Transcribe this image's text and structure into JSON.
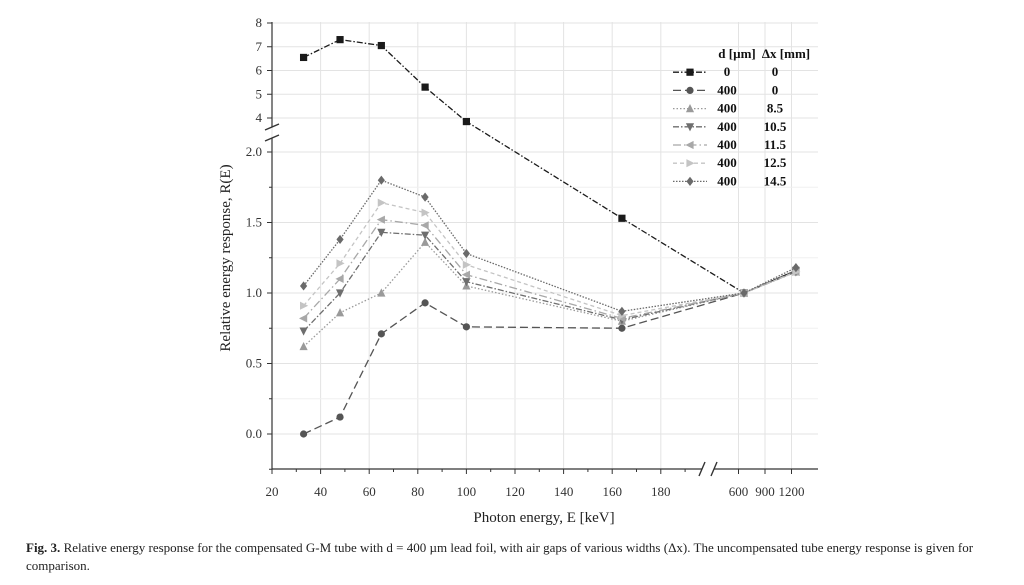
{
  "chart_data": {
    "type": "line",
    "xlabel": "Photon energy, E [keV]",
    "ylabel": "Relative energy response, R(E)",
    "x_scale": "broken",
    "x_ticks": [
      "20",
      "40",
      "60",
      "80",
      "100",
      "120",
      "140",
      "160",
      "180",
      "600",
      "900",
      "1200"
    ],
    "y_ticks_lower": [
      "0.0",
      "0.5",
      "1.0",
      "1.5",
      "2.0"
    ],
    "y_ticks_upper": [
      "4",
      "5",
      "6",
      "7",
      "8"
    ],
    "ylim_lower": [
      -0.25,
      2.05
    ],
    "ylim_upper": [
      3.6,
      8
    ],
    "grid": true,
    "legend_position": "top-right",
    "legend_header": [
      "d [µm]",
      "Δx [mm]"
    ],
    "series": [
      {
        "name": "0",
        "d": "0",
        "dx": "0",
        "color": "#1a1a1a",
        "marker": "square",
        "dash": "6,2,1.5,2",
        "x": [
          33,
          48,
          65,
          83,
          100,
          164,
          662,
          1250
        ],
        "y": [
          6.55,
          7.3,
          7.05,
          5.3,
          3.85,
          1.53,
          1.0,
          1.16
        ]
      },
      {
        "name": "400",
        "d": "400",
        "dx": "0",
        "color": "#555555",
        "marker": "circle",
        "dash": "8,4",
        "x": [
          33,
          48,
          65,
          83,
          100,
          164,
          662,
          1250
        ],
        "y": [
          0.0,
          0.12,
          0.71,
          0.93,
          0.76,
          0.75,
          1.0,
          1.16
        ]
      },
      {
        "name": "400",
        "d": "400",
        "dx": "8.5",
        "color": "#9a9a9a",
        "marker": "triangle-up",
        "dash": "1.5,2",
        "x": [
          33,
          48,
          65,
          83,
          100,
          164,
          662,
          1250
        ],
        "y": [
          0.62,
          0.86,
          1.0,
          1.36,
          1.05,
          0.8,
          1.0,
          1.15
        ]
      },
      {
        "name": "400",
        "d": "400",
        "dx": "10.5",
        "color": "#6e6e6e",
        "marker": "triangle-down",
        "dash": "6,2,1.5,2",
        "x": [
          33,
          48,
          65,
          83,
          100,
          164,
          662,
          1250
        ],
        "y": [
          0.73,
          1.0,
          1.43,
          1.41,
          1.08,
          0.81,
          1.0,
          1.15
        ]
      },
      {
        "name": "400",
        "d": "400",
        "dx": "11.5",
        "color": "#a8a8a8",
        "marker": "triangle-left",
        "dash": "8,3,1.5,3",
        "x": [
          33,
          48,
          65,
          83,
          100,
          164,
          662,
          1250
        ],
        "y": [
          0.82,
          1.1,
          1.52,
          1.48,
          1.13,
          0.82,
          1.0,
          1.15
        ]
      },
      {
        "name": "400",
        "d": "400",
        "dx": "12.5",
        "color": "#c4c4c4",
        "marker": "triangle-right",
        "dash": "4,3",
        "x": [
          33,
          48,
          65,
          83,
          100,
          164,
          662,
          1250
        ],
        "y": [
          0.91,
          1.21,
          1.64,
          1.57,
          1.2,
          0.84,
          1.0,
          1.15
        ]
      },
      {
        "name": "400",
        "d": "400",
        "dx": "14.5",
        "color": "#6a6a6a",
        "marker": "diamond",
        "dash": "1.5,1.5",
        "x": [
          33,
          48,
          65,
          83,
          100,
          164,
          662,
          1250
        ],
        "y": [
          1.05,
          1.38,
          1.8,
          1.68,
          1.28,
          0.87,
          1.0,
          1.18
        ]
      }
    ]
  },
  "caption": {
    "label": "Fig. 3.",
    "text": "Relative energy response for the compensated G-M tube with d = 400 µm lead foil, with air gaps of various widths (Δx). The uncompensated tube energy response is given for comparison."
  }
}
